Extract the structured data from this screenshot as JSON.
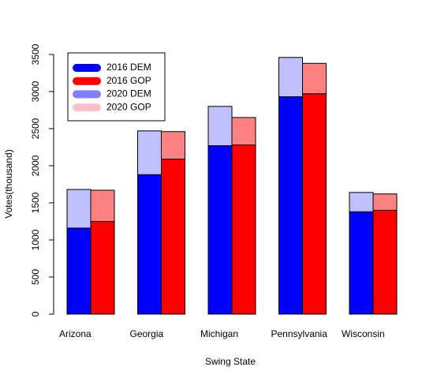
{
  "chart_data": {
    "type": "bar",
    "x_label": "Swing State",
    "y_label": "Votes(thousand)",
    "categories": [
      "Arizona",
      "Georgia",
      "Michigan",
      "Pennsylvania",
      "Wisconsin"
    ],
    "series": [
      {
        "name": "2016 DEM",
        "color": "#0000ff",
        "legend_color": "#0000ff",
        "values": [
          1160,
          1880,
          2270,
          2930,
          1380
        ]
      },
      {
        "name": "2016 GOP",
        "color": "#ff0000",
        "legend_color": "#ff0000",
        "values": [
          1250,
          2090,
          2280,
          2970,
          1400
        ]
      },
      {
        "name": "2020 DEM",
        "color": "#c0c0ff",
        "legend_color": "#8080ff",
        "values": [
          1680,
          2470,
          2800,
          3460,
          1640
        ]
      },
      {
        "name": "2020 GOP",
        "color": "#ff8080",
        "legend_color": "#ffc0cb",
        "values": [
          1670,
          2460,
          2650,
          3380,
          1620
        ]
      }
    ],
    "ylim": [
      0,
      3500
    ],
    "yticks": [
      0,
      500,
      1000,
      1500,
      2000,
      2500,
      3000,
      3500
    ],
    "legend": "top-left"
  }
}
